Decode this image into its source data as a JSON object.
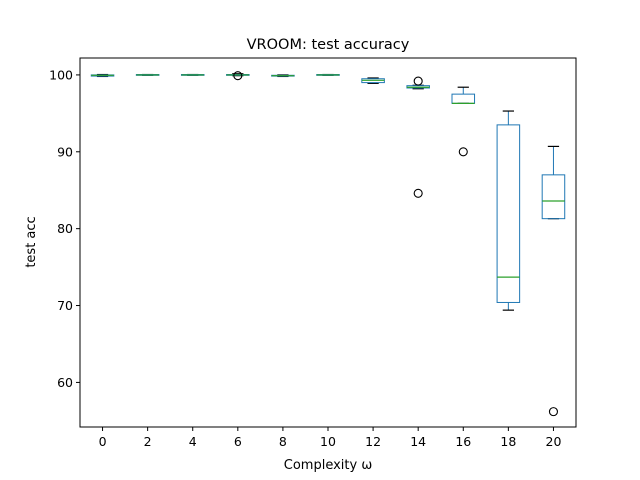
{
  "chart_data": {
    "type": "box",
    "title": "VROOM: test accuracy",
    "xlabel": "Complexity ω",
    "ylabel": "test acc",
    "ylim": [
      54.2,
      102.2
    ],
    "yticks": [
      60,
      70,
      80,
      90,
      100
    ],
    "grid": false,
    "categories": [
      "0",
      "2",
      "4",
      "6",
      "8",
      "10",
      "12",
      "14",
      "16",
      "18",
      "20"
    ],
    "boxes": [
      {
        "category": "0",
        "whislo": 99.8,
        "q1": 99.85,
        "med": 99.95,
        "q3": 100.0,
        "whishi": 100.05,
        "fliers": []
      },
      {
        "category": "2",
        "whislo": 99.95,
        "q1": 100.0,
        "med": 100.0,
        "q3": 100.05,
        "whishi": 100.05,
        "fliers": []
      },
      {
        "category": "4",
        "whislo": 99.95,
        "q1": 100.0,
        "med": 100.0,
        "q3": 100.05,
        "whishi": 100.05,
        "fliers": []
      },
      {
        "category": "6",
        "whislo": 99.9,
        "q1": 99.95,
        "med": 100.0,
        "q3": 100.05,
        "whishi": 100.15,
        "fliers": [
          99.9
        ]
      },
      {
        "category": "8",
        "whislo": 99.8,
        "q1": 99.85,
        "med": 99.9,
        "q3": 99.95,
        "whishi": 100.0,
        "fliers": []
      },
      {
        "category": "10",
        "whislo": 99.95,
        "q1": 100.0,
        "med": 100.0,
        "q3": 100.05,
        "whishi": 100.05,
        "fliers": []
      },
      {
        "category": "12",
        "whislo": 98.9,
        "q1": 99.0,
        "med": 99.3,
        "q3": 99.5,
        "whishi": 99.6,
        "fliers": []
      },
      {
        "category": "14",
        "whislo": 98.2,
        "q1": 98.3,
        "med": 98.4,
        "q3": 98.6,
        "whishi": 98.65,
        "fliers": [
          99.2,
          84.6
        ]
      },
      {
        "category": "16",
        "whislo": 96.3,
        "q1": 96.3,
        "med": 96.3,
        "q3": 97.5,
        "whishi": 98.4,
        "fliers": [
          90.0
        ]
      },
      {
        "category": "18",
        "whislo": 69.4,
        "q1": 70.4,
        "med": 73.7,
        "q3": 93.5,
        "whishi": 95.3,
        "fliers": []
      },
      {
        "category": "20",
        "whislo": 81.3,
        "q1": 81.3,
        "med": 83.6,
        "q3": 87.0,
        "whishi": 90.7,
        "fliers": [
          56.2
        ]
      }
    ],
    "colors": {
      "box": "#1f77b4",
      "median": "#2ca02c",
      "cap": "#000000",
      "flier": "#000000"
    }
  }
}
